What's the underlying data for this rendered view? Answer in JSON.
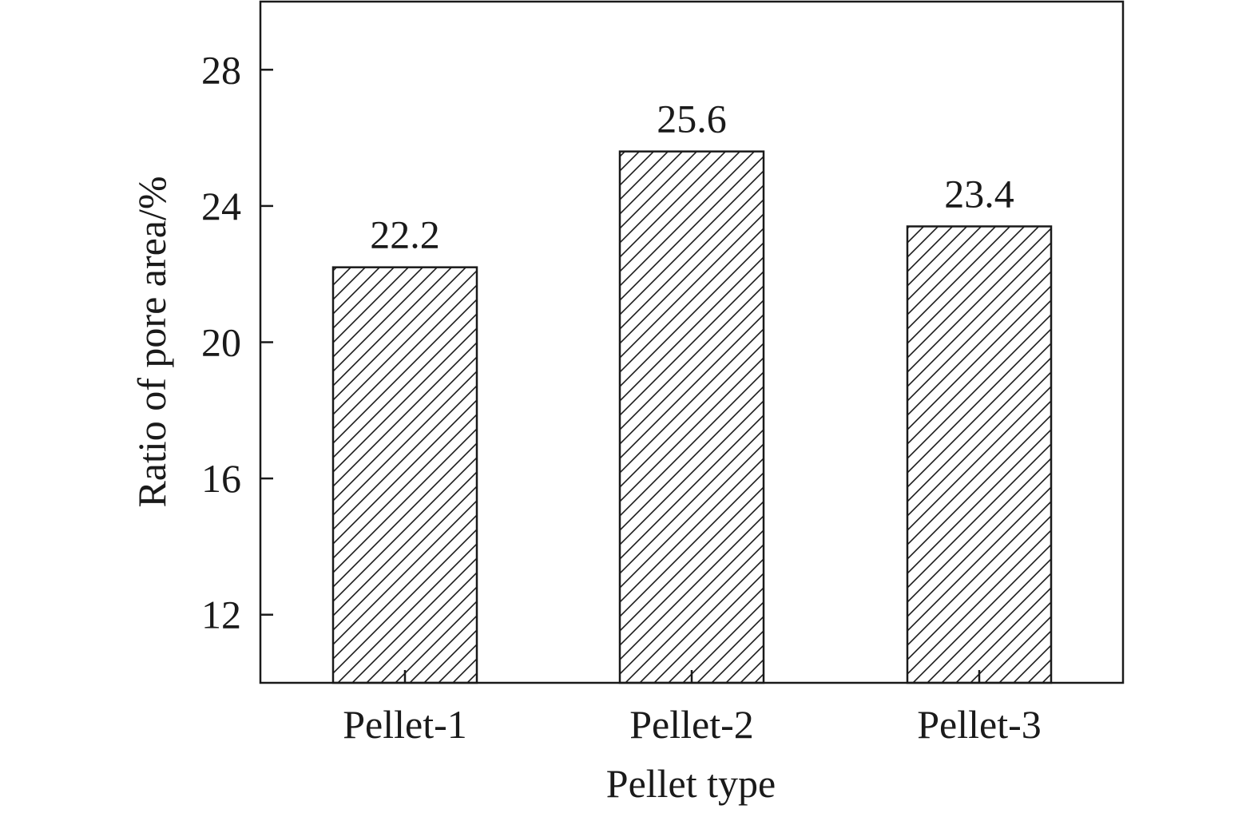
{
  "chart_data": {
    "type": "bar",
    "title": "",
    "xlabel": "Pellet type",
    "ylabel": "Ratio of pore area/%",
    "categories": [
      "Pellet-1",
      "Pellet-2",
      "Pellet-3"
    ],
    "values": [
      22.2,
      25.6,
      23.4
    ],
    "data_labels": [
      "22.2",
      "25.6",
      "23.4"
    ],
    "ylim": [
      10,
      30
    ],
    "yticks": [
      12,
      16,
      20,
      24,
      28
    ],
    "grid": false,
    "legend": "none",
    "bar_fill": "diagonal-hatch",
    "colors": {
      "stroke": "#1a1a1a",
      "fill": "#ffffff"
    }
  }
}
